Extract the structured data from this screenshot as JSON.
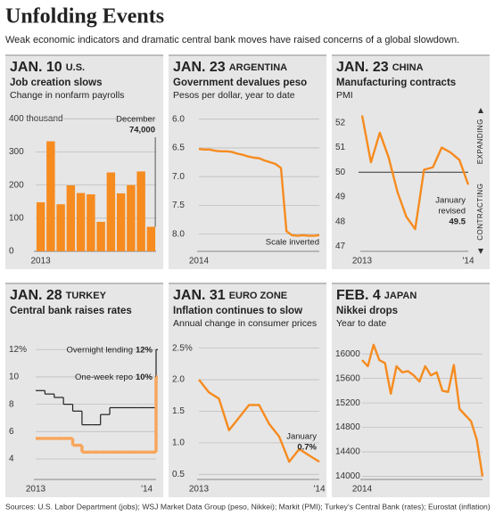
{
  "header": {
    "title": "Unfolding Events",
    "subtitle": "Weak economic indicators and dramatic central bank moves have raised concerns of a global slowdown."
  },
  "chart_data": [
    {
      "type": "bar",
      "date": "JAN. 10",
      "place": "U.S.",
      "title": "Job creation slows",
      "subtitle": "Change in nonfarm payrolls",
      "categories": [
        "2013",
        null,
        null,
        null,
        null,
        null,
        null,
        null,
        null,
        null,
        null,
        null
      ],
      "values": [
        148,
        332,
        142,
        199,
        176,
        172,
        89,
        238,
        175,
        200,
        241,
        74
      ],
      "value_labels": [
        null,
        null,
        null,
        null,
        null,
        null,
        null,
        null,
        null,
        null,
        null,
        "74,000"
      ],
      "annotation": [
        "December"
      ],
      "color": "#f68b1f",
      "ylim": [
        0,
        425
      ],
      "yticks": [
        0,
        100,
        200,
        300,
        {
          "value": 400,
          "label": "400 thousand"
        }
      ],
      "grid": true
    },
    {
      "type": "line",
      "date": "JAN. 23",
      "place": "ARGENTINA",
      "title": "Government devalues peso",
      "subtitle": "Pesos per dollar, year to date",
      "categories": [
        "2014",
        null,
        null,
        null,
        null,
        null,
        null,
        null,
        null,
        null,
        null,
        null,
        null,
        null,
        null,
        null,
        null,
        null,
        null,
        null,
        null,
        null,
        null
      ],
      "values": [
        6.52,
        6.53,
        6.53,
        6.55,
        6.56,
        6.56,
        6.57,
        6.6,
        6.62,
        6.65,
        6.67,
        6.68,
        6.72,
        6.75,
        6.78,
        6.85,
        7.95,
        8.02,
        8.03,
        8.02,
        8.03,
        8.03,
        8.02
      ],
      "color": "#f68b1f",
      "invert": true,
      "note": "Scale inverted",
      "ylim": [
        5.85,
        8.3
      ],
      "yticks": [
        {
          "value": 6,
          "label": "6.0"
        },
        6.5,
        {
          "value": 7,
          "label": "7.0"
        },
        7.5,
        {
          "value": 8,
          "label": "8.0"
        }
      ],
      "grid": true
    },
    {
      "type": "line",
      "date": "JAN. 23",
      "place": "CHINA",
      "title": "Manufacturing contracts",
      "subtitle": "PMI",
      "categories": [
        "2013",
        null,
        null,
        null,
        null,
        null,
        null,
        null,
        null,
        null,
        null,
        null,
        "'14"
      ],
      "values": [
        52.3,
        50.4,
        51.6,
        50.6,
        49.2,
        48.2,
        47.7,
        50.1,
        50.2,
        51.0,
        50.8,
        50.5,
        49.5
      ],
      "value_labels": [
        null,
        null,
        null,
        null,
        null,
        null,
        null,
        null,
        null,
        null,
        null,
        null,
        "49.5"
      ],
      "annotation": [
        "January",
        "revised"
      ],
      "color": "#f68b1f",
      "reference_line": 50,
      "side_labels": {
        "top": "EXPANDING",
        "bottom": "CONTRACTING"
      },
      "ylim": [
        46.8,
        52.5
      ],
      "yticks": [
        47,
        48,
        49,
        50,
        51,
        52
      ],
      "grid": false
    },
    {
      "type": "step",
      "date": "JAN. 28",
      "place": "TURKEY",
      "title": "Central bank raises rates",
      "categories": [
        "2013",
        null,
        null,
        null,
        null,
        null,
        null,
        null,
        null,
        null,
        null,
        null,
        "'14",
        null
      ],
      "series": [
        {
          "name": "Overnight lending",
          "color": "#231f20",
          "values": [
            9,
            8.75,
            8.5,
            8,
            7.5,
            6.5,
            6.5,
            7.25,
            7.75,
            7.75,
            7.75,
            7.75,
            7.75,
            12
          ],
          "value_labels": [
            null,
            null,
            null,
            null,
            null,
            null,
            null,
            null,
            null,
            null,
            null,
            null,
            null,
            "12%"
          ]
        },
        {
          "name": "One-week repo",
          "color": "#f8a55a",
          "values": [
            5.5,
            5.5,
            5.5,
            5.5,
            5,
            4.5,
            4.5,
            4.5,
            4.5,
            4.5,
            4.5,
            4.5,
            4.5,
            10
          ],
          "value_labels": [
            null,
            null,
            null,
            null,
            null,
            null,
            null,
            null,
            null,
            null,
            null,
            null,
            null,
            "10%"
          ]
        }
      ],
      "ylim": [
        2.5,
        12.8
      ],
      "yticks": [
        4,
        6,
        8,
        10,
        {
          "value": 12,
          "label": "12%"
        }
      ],
      "grid": true
    },
    {
      "type": "line",
      "date": "JAN. 31",
      "place": "EURO ZONE",
      "title": "Inflation continues to slow",
      "subtitle": "Annual change in consumer prices",
      "categories": [
        "2013",
        null,
        null,
        null,
        null,
        null,
        null,
        null,
        null,
        null,
        null,
        null,
        "'14"
      ],
      "values": [
        2.0,
        1.8,
        1.7,
        1.2,
        1.4,
        1.6,
        1.6,
        1.3,
        1.1,
        0.7,
        0.9,
        0.8,
        0.7
      ],
      "value_labels": [
        null,
        null,
        null,
        null,
        null,
        null,
        null,
        null,
        null,
        null,
        null,
        null,
        "0.7%"
      ],
      "annotation": [
        "January"
      ],
      "color": "#f68b1f",
      "ylim": [
        0.42,
        2.65
      ],
      "yticks": [
        0.5,
        {
          "value": 1,
          "label": "1.0"
        },
        1.5,
        {
          "value": 2,
          "label": "2.0"
        },
        {
          "value": 2.5,
          "label": "2.5%"
        }
      ],
      "grid": true
    },
    {
      "type": "line",
      "date": "FEB. 4",
      "place": "JAPAN",
      "title": "Nikkei drops",
      "subtitle": "Year to date",
      "categories": [
        "2014",
        null,
        null,
        null,
        null,
        null,
        null,
        null,
        null,
        null,
        null,
        null,
        null,
        null,
        null,
        null,
        null,
        null,
        null,
        null,
        null,
        null
      ],
      "values": [
        15900,
        15800,
        16150,
        15900,
        15850,
        15350,
        15800,
        15700,
        15720,
        15650,
        15550,
        15800,
        15650,
        15700,
        15400,
        15380,
        15820,
        15100,
        15000,
        14900,
        14600,
        14000
      ],
      "color": "#f68b1f",
      "ylim": [
        13950,
        16250
      ],
      "yticks": [
        14000,
        14400,
        14800,
        15200,
        15600,
        16000
      ],
      "grid": true
    }
  ],
  "footer": {
    "source": "Sources: U.S. Labor Department (jobs); WSJ Market Data Group (peso, Nikkei); Markit (PMI); Turkey's Central Bank (rates); Eurostat (inflation)"
  }
}
